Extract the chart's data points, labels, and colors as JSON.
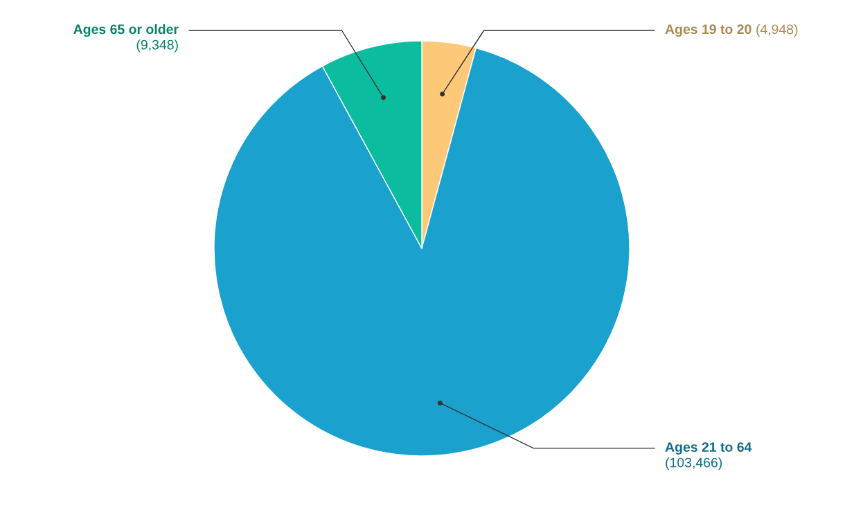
{
  "chart_data": {
    "type": "pie",
    "categories": [
      "Ages 19 to 20",
      "Ages 21 to 64",
      "Ages 65 or older"
    ],
    "values": [
      4948,
      103466,
      9348
    ],
    "value_labels": [
      "(4,948)",
      "(103,466)",
      "(9,348)"
    ],
    "colors": [
      "#fdc878",
      "#1aa1cd",
      "#0bbc9f"
    ]
  }
}
